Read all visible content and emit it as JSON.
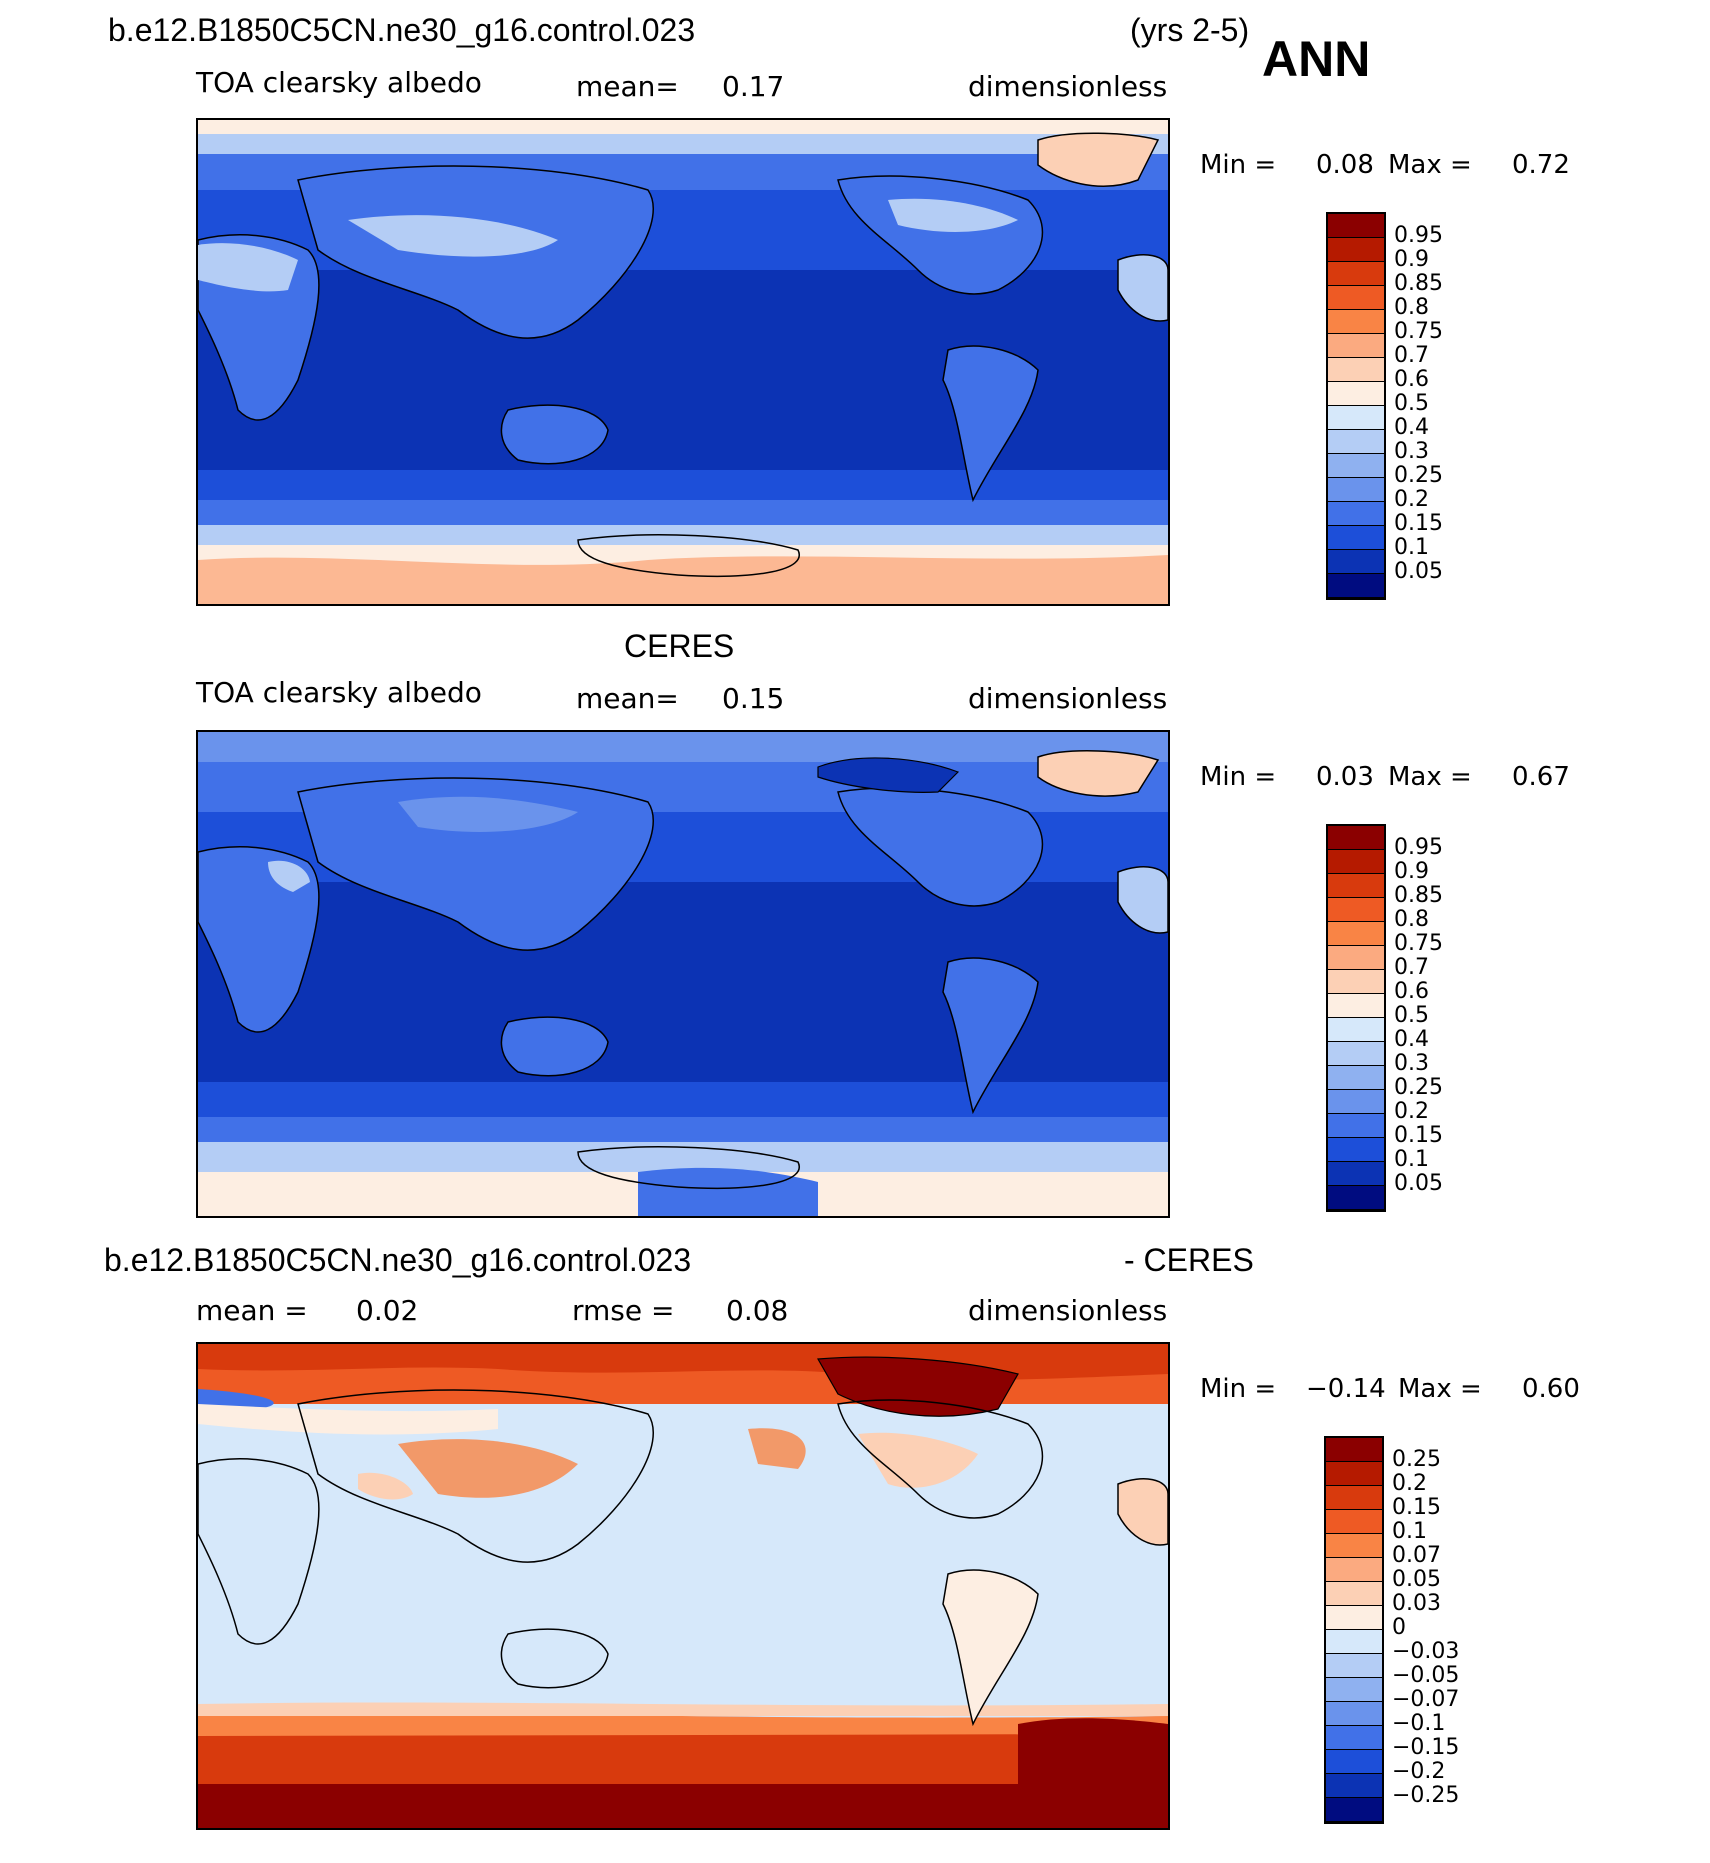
{
  "header": {
    "case_name": "b.e12.B1850C5CN.ne30_g16.control.023",
    "years": "(yrs 2-5)",
    "season": "ANN"
  },
  "panels": [
    {
      "id": "model",
      "title": "",
      "variable": "TOA clearsky albedo",
      "mean_label": "mean=",
      "mean_value": "0.17",
      "units": "dimensionless",
      "min_label": "Min =",
      "min_value": "0.08",
      "max_label": "Max =",
      "max_value": "0.72",
      "colorbar_levels": [
        "0.95",
        "0.9",
        "0.85",
        "0.8",
        "0.75",
        "0.7",
        "0.6",
        "0.5",
        "0.4",
        "0.3",
        "0.25",
        "0.2",
        "0.15",
        "0.1",
        "0.05"
      ],
      "colorbar_colors": [
        "#8b0000",
        "#b51a00",
        "#d83a0d",
        "#ee5a24",
        "#f98445",
        "#fbaa80",
        "#fcd0b5",
        "#fdeee2",
        "#d6e8fa",
        "#b4cdf5",
        "#8fb1f0",
        "#6a93ec",
        "#4171e8",
        "#1d4fd9",
        "#0c33b4",
        "#000c80"
      ]
    },
    {
      "id": "obs",
      "title": "CERES",
      "variable": "TOA clearsky albedo",
      "mean_label": "mean=",
      "mean_value": "0.15",
      "units": "dimensionless",
      "min_label": "Min =",
      "min_value": "0.03",
      "max_label": "Max =",
      "max_value": "0.67",
      "colorbar_levels": [
        "0.95",
        "0.9",
        "0.85",
        "0.8",
        "0.75",
        "0.7",
        "0.6",
        "0.5",
        "0.4",
        "0.3",
        "0.25",
        "0.2",
        "0.15",
        "0.1",
        "0.05"
      ],
      "colorbar_colors": [
        "#8b0000",
        "#b51a00",
        "#d83a0d",
        "#ee5a24",
        "#f98445",
        "#fbaa80",
        "#fcd0b5",
        "#fdeee2",
        "#d6e8fa",
        "#b4cdf5",
        "#8fb1f0",
        "#6a93ec",
        "#4171e8",
        "#1d4fd9",
        "#0c33b4",
        "#000c80"
      ]
    },
    {
      "id": "diff",
      "title_left": "b.e12.B1850C5CN.ne30_g16.control.023",
      "title_right": "- CERES",
      "mean_label": "mean =",
      "mean_value": "0.02",
      "rmse_label": "rmse =",
      "rmse_value": "0.08",
      "units": "dimensionless",
      "min_label": "Min =",
      "min_value": "−0.14",
      "max_label": "Max =",
      "max_value": "0.60",
      "colorbar_levels": [
        "0.25",
        "0.2",
        "0.15",
        "0.1",
        "0.07",
        "0.05",
        "0.03",
        "0",
        "−0.03",
        "−0.05",
        "−0.07",
        "−0.1",
        "−0.15",
        "−0.2",
        "−0.25"
      ],
      "colorbar_colors": [
        "#8b0000",
        "#b51a00",
        "#d83a0d",
        "#ee5a24",
        "#f98445",
        "#fbaa80",
        "#fcd0b5",
        "#fdeee2",
        "#d6e8fa",
        "#b4cdf5",
        "#8fb1f0",
        "#6a93ec",
        "#4171e8",
        "#1d4fd9",
        "#0c33b4",
        "#000c80"
      ]
    }
  ]
}
